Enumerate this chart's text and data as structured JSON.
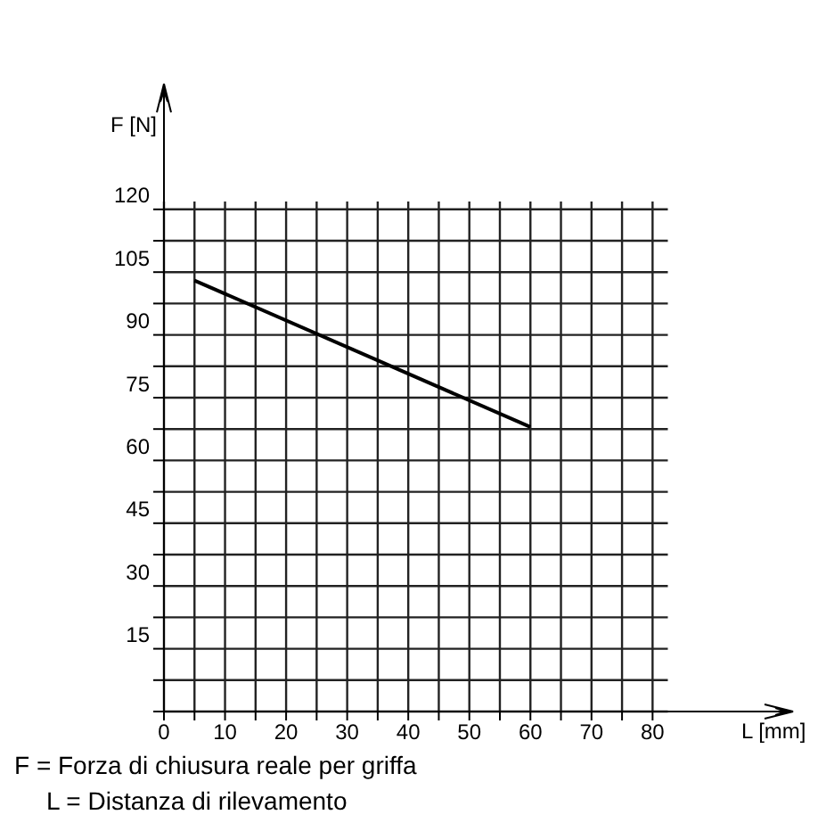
{
  "chart_data": {
    "type": "line",
    "xlabel": "L [mm]",
    "ylabel": "F [N]",
    "x": [
      5,
      60
    ],
    "series": [
      {
        "color": "#000000",
        "values": [
          103,
          68
        ]
      }
    ],
    "xlim": [
      0,
      103
    ],
    "ylim": [
      0,
      150
    ],
    "xticks": [
      0,
      {
        "value": 5,
        "label": null
      },
      10,
      {
        "value": 15,
        "label": null
      },
      20,
      {
        "value": 25,
        "label": null
      },
      30,
      {
        "value": 35,
        "label": null
      },
      40,
      {
        "value": 45,
        "label": null
      },
      50,
      {
        "value": 55,
        "label": null
      },
      60,
      {
        "value": 65,
        "label": null
      },
      70,
      {
        "value": 75,
        "label": null
      },
      80
    ],
    "yticks": [
      {
        "value": 0,
        "label": null
      },
      {
        "value": 7.5,
        "label": null
      },
      15,
      {
        "value": 22.5,
        "label": null
      },
      30,
      {
        "value": 37.5,
        "label": null
      },
      45,
      {
        "value": 52.5,
        "label": null
      },
      60,
      {
        "value": 67.5,
        "label": null
      },
      75,
      {
        "value": 82.5,
        "label": null
      },
      90,
      {
        "value": 97.5,
        "label": null
      },
      105,
      {
        "value": 112.5,
        "label": null
      },
      120
    ],
    "grid": true,
    "annotations": [
      "F = Forza di chiusura reale per griffa",
      "L = Distanza di rilevamento"
    ]
  }
}
